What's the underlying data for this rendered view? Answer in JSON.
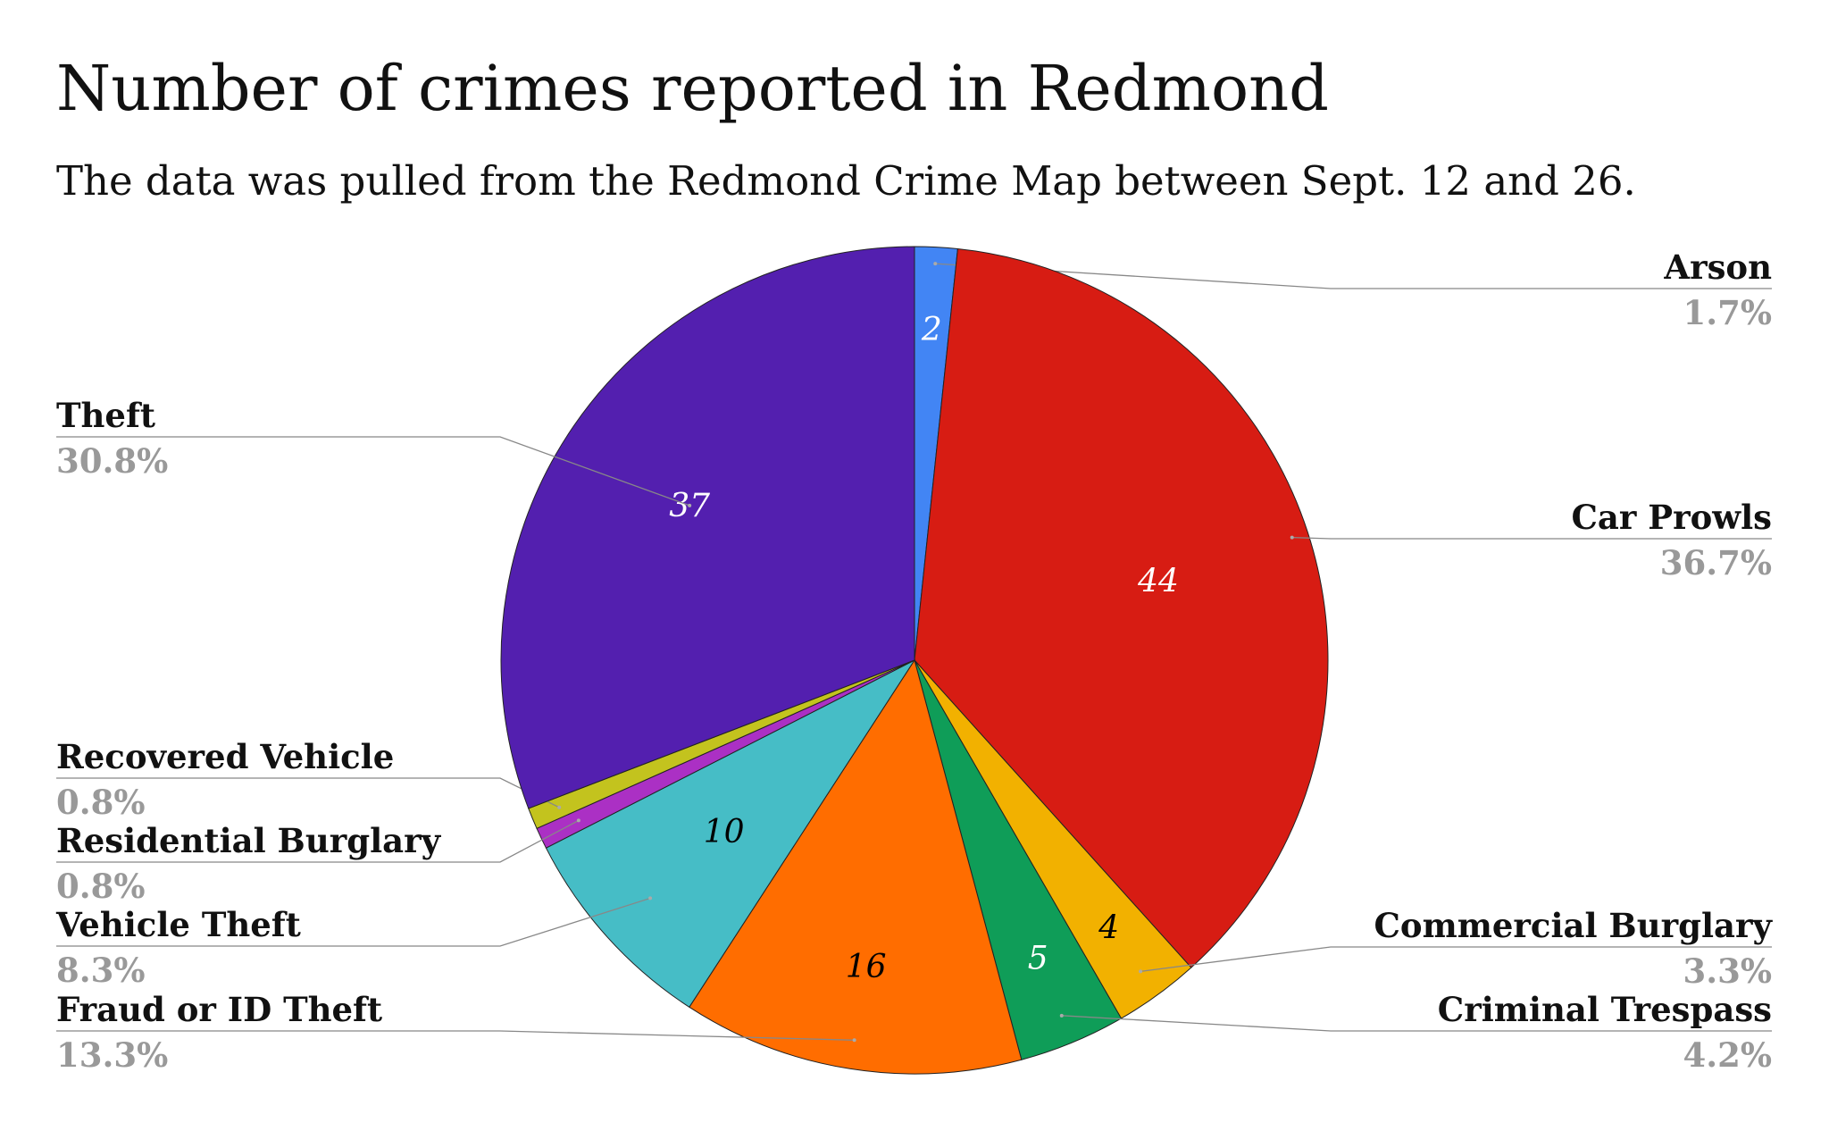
{
  "chart_data": {
    "type": "pie",
    "title": "Number of crimes reported in Redmond",
    "subtitle": "The data was pulled from the Redmond Crime Map between Sept. 12 and 26.",
    "slices": [
      {
        "label": "Arson",
        "value": 2,
        "value_label": "2",
        "percent": "1.7%",
        "color": "#4285f4",
        "text_color": "#ffffff",
        "side": "right"
      },
      {
        "label": "Car Prowls",
        "value": 44,
        "value_label": "44",
        "percent": "36.7%",
        "color": "#d71c13",
        "text_color": "#ffffff",
        "side": "right"
      },
      {
        "label": "Commercial Burglary",
        "value": 4,
        "value_label": "4",
        "percent": "3.3%",
        "color": "#f2b100",
        "text_color": "#000000",
        "side": "right"
      },
      {
        "label": "Criminal Trespass",
        "value": 5,
        "value_label": "5",
        "percent": "4.2%",
        "color": "#0f9d58",
        "text_color": "#ffffff",
        "side": "right"
      },
      {
        "label": "Fraud or ID Theft",
        "value": 16,
        "value_label": "16",
        "percent": "13.3%",
        "color": "#ff6d00",
        "text_color": "#000000",
        "side": "left"
      },
      {
        "label": "Vehicle Theft",
        "value": 10,
        "value_label": "10",
        "percent": "8.3%",
        "color": "#46bdc6",
        "text_color": "#000000",
        "side": "left"
      },
      {
        "label": "Residential Burglary",
        "value": 1,
        "value_label": "",
        "percent": "0.8%",
        "color": "#ab30c4",
        "text_color": "#000000",
        "side": "left"
      },
      {
        "label": "Recovered Vehicle",
        "value": 1,
        "value_label": "",
        "percent": "0.8%",
        "color": "#c3c31e",
        "text_color": "#000000",
        "side": "left"
      },
      {
        "label": "Theft",
        "value": 37,
        "value_label": "37",
        "percent": "30.8%",
        "color": "#531faf",
        "text_color": "#ffffff",
        "side": "left"
      }
    ],
    "legend": "callout-labels"
  }
}
